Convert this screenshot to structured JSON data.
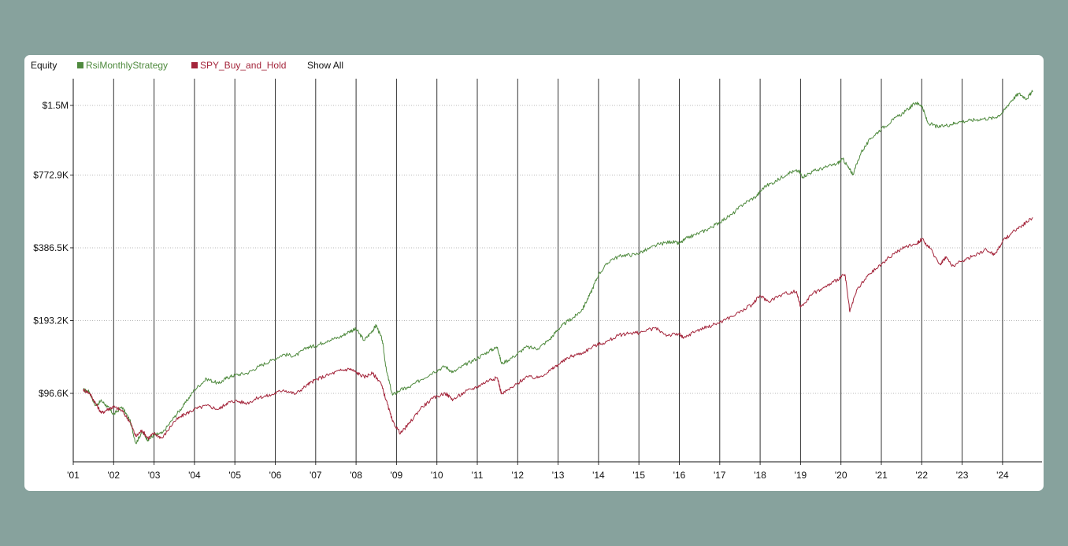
{
  "legend": {
    "title": "Equity",
    "show_all_label": "Show All"
  },
  "colors": {
    "background": "#87a29d",
    "panel": "#ffffff",
    "strategy": "#4f8a3e",
    "benchmark": "#a3243a",
    "grid": "#b8b8b8",
    "year_line": "#333333"
  },
  "chart_data": {
    "type": "line",
    "y_scale": "log",
    "ylim": [
      48000,
      1750000
    ],
    "xlim": [
      2001.0,
      2024.8
    ],
    "grid": true,
    "legend_position": "top-left",
    "y_ticks": [
      {
        "value": 96600,
        "label": "$96.6K"
      },
      {
        "value": 193200,
        "label": "$193.2K"
      },
      {
        "value": 386500,
        "label": "$386.5K"
      },
      {
        "value": 772900,
        "label": "$772.9K"
      },
      {
        "value": 1500000,
        "label": "$1.5M"
      }
    ],
    "x_ticks": [
      {
        "value": 2001,
        "label": "'01"
      },
      {
        "value": 2002,
        "label": "'02"
      },
      {
        "value": 2003,
        "label": "'03"
      },
      {
        "value": 2004,
        "label": "'04"
      },
      {
        "value": 2005,
        "label": "'05"
      },
      {
        "value": 2006,
        "label": "'06"
      },
      {
        "value": 2007,
        "label": "'07"
      },
      {
        "value": 2008,
        "label": "'08"
      },
      {
        "value": 2009,
        "label": "'09"
      },
      {
        "value": 2010,
        "label": "'10"
      },
      {
        "value": 2011,
        "label": "'11"
      },
      {
        "value": 2012,
        "label": "'12"
      },
      {
        "value": 2013,
        "label": "'13"
      },
      {
        "value": 2014,
        "label": "'14"
      },
      {
        "value": 2015,
        "label": "'15"
      },
      {
        "value": 2016,
        "label": "'16"
      },
      {
        "value": 2017,
        "label": "'17"
      },
      {
        "value": 2018,
        "label": "'18"
      },
      {
        "value": 2019,
        "label": "'19"
      },
      {
        "value": 2020,
        "label": "'20"
      },
      {
        "value": 2021,
        "label": "'21"
      },
      {
        "value": 2022,
        "label": "'22"
      },
      {
        "value": 2023,
        "label": "'23"
      },
      {
        "value": 2024,
        "label": "'24"
      }
    ],
    "series": [
      {
        "name": "RsiMonthlyStrategy",
        "color": "#4f8a3e",
        "points": [
          [
            2001.25,
            100000
          ],
          [
            2001.4,
            98000
          ],
          [
            2001.55,
            86000
          ],
          [
            2001.7,
            90000
          ],
          [
            2001.85,
            85000
          ],
          [
            2002.0,
            79000
          ],
          [
            2002.2,
            85000
          ],
          [
            2002.4,
            75000
          ],
          [
            2002.55,
            60000
          ],
          [
            2002.7,
            67000
          ],
          [
            2002.85,
            62000
          ],
          [
            2003.0,
            65000
          ],
          [
            2003.2,
            66000
          ],
          [
            2003.5,
            77000
          ],
          [
            2003.75,
            87000
          ],
          [
            2004.0,
            100000
          ],
          [
            2004.3,
            111000
          ],
          [
            2004.6,
            106000
          ],
          [
            2004.8,
            112000
          ],
          [
            2005.0,
            115000
          ],
          [
            2005.3,
            117000
          ],
          [
            2005.6,
            125000
          ],
          [
            2005.9,
            132000
          ],
          [
            2006.2,
            140000
          ],
          [
            2006.5,
            138000
          ],
          [
            2006.8,
            150000
          ],
          [
            2007.0,
            152000
          ],
          [
            2007.3,
            160000
          ],
          [
            2007.6,
            165000
          ],
          [
            2007.85,
            175000
          ],
          [
            2008.0,
            178000
          ],
          [
            2008.2,
            160000
          ],
          [
            2008.4,
            175000
          ],
          [
            2008.5,
            185000
          ],
          [
            2008.65,
            160000
          ],
          [
            2008.75,
            120000
          ],
          [
            2008.9,
            95000
          ],
          [
            2009.1,
            100000
          ],
          [
            2009.3,
            102000
          ],
          [
            2009.6,
            110000
          ],
          [
            2009.9,
            118000
          ],
          [
            2010.2,
            125000
          ],
          [
            2010.4,
            118000
          ],
          [
            2010.7,
            127000
          ],
          [
            2011.0,
            135000
          ],
          [
            2011.3,
            145000
          ],
          [
            2011.5,
            150000
          ],
          [
            2011.6,
            128000
          ],
          [
            2011.9,
            137000
          ],
          [
            2012.2,
            150000
          ],
          [
            2012.5,
            148000
          ],
          [
            2012.8,
            162000
          ],
          [
            2013.0,
            178000
          ],
          [
            2013.2,
            190000
          ],
          [
            2013.4,
            200000
          ],
          [
            2013.6,
            215000
          ],
          [
            2013.8,
            250000
          ],
          [
            2014.0,
            300000
          ],
          [
            2014.3,
            345000
          ],
          [
            2014.6,
            360000
          ],
          [
            2014.9,
            362000
          ],
          [
            2015.2,
            380000
          ],
          [
            2015.5,
            400000
          ],
          [
            2015.8,
            410000
          ],
          [
            2016.0,
            402000
          ],
          [
            2016.2,
            425000
          ],
          [
            2016.5,
            445000
          ],
          [
            2016.8,
            470000
          ],
          [
            2017.0,
            495000
          ],
          [
            2017.3,
            530000
          ],
          [
            2017.6,
            590000
          ],
          [
            2017.9,
            630000
          ],
          [
            2018.1,
            690000
          ],
          [
            2018.4,
            730000
          ],
          [
            2018.7,
            790000
          ],
          [
            2018.95,
            805000
          ],
          [
            2019.05,
            760000
          ],
          [
            2019.3,
            800000
          ],
          [
            2019.6,
            830000
          ],
          [
            2019.9,
            860000
          ],
          [
            2020.05,
            900000
          ],
          [
            2020.2,
            820000
          ],
          [
            2020.3,
            780000
          ],
          [
            2020.5,
            960000
          ],
          [
            2020.75,
            1100000
          ],
          [
            2021.0,
            1200000
          ],
          [
            2021.3,
            1310000
          ],
          [
            2021.6,
            1420000
          ],
          [
            2021.85,
            1540000
          ],
          [
            2022.0,
            1500000
          ],
          [
            2022.15,
            1270000
          ],
          [
            2022.4,
            1220000
          ],
          [
            2022.7,
            1250000
          ],
          [
            2022.9,
            1280000
          ],
          [
            2023.2,
            1300000
          ],
          [
            2023.5,
            1320000
          ],
          [
            2023.8,
            1330000
          ],
          [
            2024.0,
            1400000
          ],
          [
            2024.2,
            1560000
          ],
          [
            2024.4,
            1680000
          ],
          [
            2024.6,
            1600000
          ],
          [
            2024.75,
            1720000
          ]
        ]
      },
      {
        "name": "SPY_Buy_and_Hold",
        "color": "#a3243a",
        "points": [
          [
            2001.25,
            100000
          ],
          [
            2001.4,
            97000
          ],
          [
            2001.55,
            88000
          ],
          [
            2001.7,
            80000
          ],
          [
            2001.85,
            83000
          ],
          [
            2002.0,
            85000
          ],
          [
            2002.2,
            82000
          ],
          [
            2002.4,
            74000
          ],
          [
            2002.55,
            64000
          ],
          [
            2002.7,
            68000
          ],
          [
            2002.85,
            63000
          ],
          [
            2003.0,
            66000
          ],
          [
            2003.2,
            63000
          ],
          [
            2003.5,
            74000
          ],
          [
            2003.75,
            79000
          ],
          [
            2004.0,
            83000
          ],
          [
            2004.3,
            86000
          ],
          [
            2004.6,
            83000
          ],
          [
            2004.8,
            88000
          ],
          [
            2005.0,
            90000
          ],
          [
            2005.3,
            88000
          ],
          [
            2005.6,
            93000
          ],
          [
            2005.9,
            95000
          ],
          [
            2006.2,
            100000
          ],
          [
            2006.5,
            96000
          ],
          [
            2006.8,
            105000
          ],
          [
            2007.0,
            110000
          ],
          [
            2007.3,
            115000
          ],
          [
            2007.6,
            120000
          ],
          [
            2007.85,
            122000
          ],
          [
            2008.0,
            118000
          ],
          [
            2008.2,
            113000
          ],
          [
            2008.4,
            117000
          ],
          [
            2008.6,
            108000
          ],
          [
            2008.75,
            90000
          ],
          [
            2008.9,
            74000
          ],
          [
            2009.1,
            66000
          ],
          [
            2009.3,
            72000
          ],
          [
            2009.6,
            84000
          ],
          [
            2009.9,
            92000
          ],
          [
            2010.2,
            97000
          ],
          [
            2010.4,
            91000
          ],
          [
            2010.7,
            98000
          ],
          [
            2011.0,
            103000
          ],
          [
            2011.3,
            110000
          ],
          [
            2011.5,
            112000
          ],
          [
            2011.6,
            96000
          ],
          [
            2011.9,
            103000
          ],
          [
            2012.2,
            113000
          ],
          [
            2012.5,
            112000
          ],
          [
            2012.8,
            120000
          ],
          [
            2013.0,
            127000
          ],
          [
            2013.3,
            137000
          ],
          [
            2013.6,
            142000
          ],
          [
            2013.9,
            152000
          ],
          [
            2014.2,
            158000
          ],
          [
            2014.5,
            168000
          ],
          [
            2014.8,
            172000
          ],
          [
            2015.0,
            172000
          ],
          [
            2015.4,
            180000
          ],
          [
            2015.7,
            168000
          ],
          [
            2016.0,
            170000
          ],
          [
            2016.1,
            163000
          ],
          [
            2016.4,
            175000
          ],
          [
            2016.7,
            182000
          ],
          [
            2017.0,
            190000
          ],
          [
            2017.4,
            205000
          ],
          [
            2017.8,
            225000
          ],
          [
            2018.0,
            245000
          ],
          [
            2018.2,
            232000
          ],
          [
            2018.6,
            250000
          ],
          [
            2018.9,
            255000
          ],
          [
            2019.0,
            220000
          ],
          [
            2019.3,
            250000
          ],
          [
            2019.6,
            265000
          ],
          [
            2019.9,
            285000
          ],
          [
            2020.1,
            300000
          ],
          [
            2020.22,
            210000
          ],
          [
            2020.4,
            260000
          ],
          [
            2020.7,
            300000
          ],
          [
            2021.0,
            330000
          ],
          [
            2021.3,
            365000
          ],
          [
            2021.6,
            390000
          ],
          [
            2021.9,
            405000
          ],
          [
            2022.0,
            420000
          ],
          [
            2022.2,
            385000
          ],
          [
            2022.45,
            330000
          ],
          [
            2022.6,
            355000
          ],
          [
            2022.75,
            325000
          ],
          [
            2023.0,
            340000
          ],
          [
            2023.3,
            360000
          ],
          [
            2023.6,
            380000
          ],
          [
            2023.8,
            362000
          ],
          [
            2024.0,
            410000
          ],
          [
            2024.25,
            450000
          ],
          [
            2024.5,
            480000
          ],
          [
            2024.75,
            515000
          ]
        ]
      }
    ]
  }
}
